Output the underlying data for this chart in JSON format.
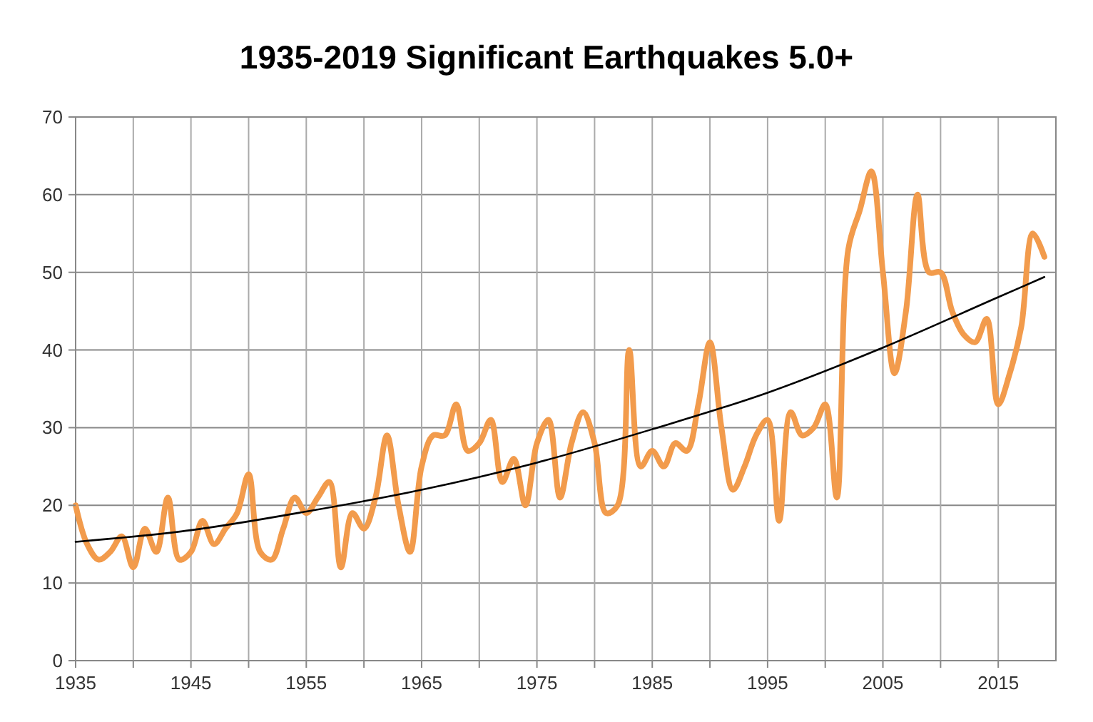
{
  "chart_data": {
    "type": "line",
    "title": "1935-2019 Significant Earthquakes 5.0+",
    "x": [
      1935,
      1936,
      1937,
      1938,
      1939,
      1940,
      1941,
      1942,
      1943,
      1944,
      1945,
      1946,
      1947,
      1948,
      1949,
      1950,
      1951,
      1952,
      1953,
      1954,
      1955,
      1956,
      1957,
      1958,
      1959,
      1960,
      1961,
      1962,
      1963,
      1964,
      1965,
      1966,
      1967,
      1968,
      1969,
      1970,
      1971,
      1972,
      1973,
      1974,
      1975,
      1976,
      1977,
      1978,
      1979,
      1980,
      1981,
      1982,
      1983,
      1984,
      1985,
      1986,
      1987,
      1988,
      1989,
      1990,
      1991,
      1992,
      1993,
      1994,
      1995,
      1996,
      1997,
      1998,
      1999,
      2000,
      2001,
      2002,
      2003,
      2004,
      2005,
      2006,
      2007,
      2008,
      2009,
      2010,
      2011,
      2012,
      2013,
      2014,
      2015,
      2016,
      2017,
      2018,
      2019
    ],
    "series": [
      {
        "color": "#f29b4c",
        "values": [
          20,
          15,
          13,
          14,
          16,
          12,
          17,
          14,
          21,
          13,
          14,
          18,
          15,
          17,
          19,
          24,
          14,
          13,
          17,
          21,
          19,
          21,
          23,
          12,
          19,
          17,
          21,
          29,
          20,
          14,
          25,
          29,
          29,
          33,
          27,
          28,
          31,
          23,
          26,
          20,
          28,
          31,
          21,
          28,
          32,
          28,
          19,
          20,
          40,
          25,
          27,
          25,
          28,
          27,
          33,
          41,
          30,
          22,
          25,
          29,
          31,
          18,
          32,
          29,
          30,
          33,
          21,
          53,
          58,
          63,
          50,
          37,
          45,
          60,
          50,
          50,
          45,
          42,
          41,
          44,
          33,
          37,
          43,
          55,
          52
        ]
      },
      {
        "type": "line",
        "color": "#000000",
        "x": [
          1935,
          1945,
          1955,
          1965,
          1975,
          1985,
          1995,
          2005,
          2015,
          2019
        ],
        "values": [
          15.3,
          16.8,
          19.2,
          22,
          25.5,
          29.8,
          34.5,
          40.3,
          46.8,
          49.4
        ]
      }
    ],
    "xlim": [
      1935,
      2020
    ],
    "xticks": [
      1935,
      {
        "value": 1940,
        "label": null
      },
      1945,
      {
        "value": 1950,
        "label": null
      },
      1955,
      {
        "value": 1960,
        "label": null
      },
      1965,
      {
        "value": 1970,
        "label": null
      },
      1975,
      {
        "value": 1980,
        "label": null
      },
      1985,
      {
        "value": 1990,
        "label": null
      },
      1995,
      {
        "value": 2000,
        "label": null
      },
      2005,
      {
        "value": 2010,
        "label": null
      },
      2015
    ],
    "ylim": [
      0,
      70
    ],
    "yticks": [
      0,
      10,
      20,
      30,
      40,
      50,
      60,
      70
    ],
    "grid": true,
    "marker": "none",
    "line_style": "solid"
  }
}
